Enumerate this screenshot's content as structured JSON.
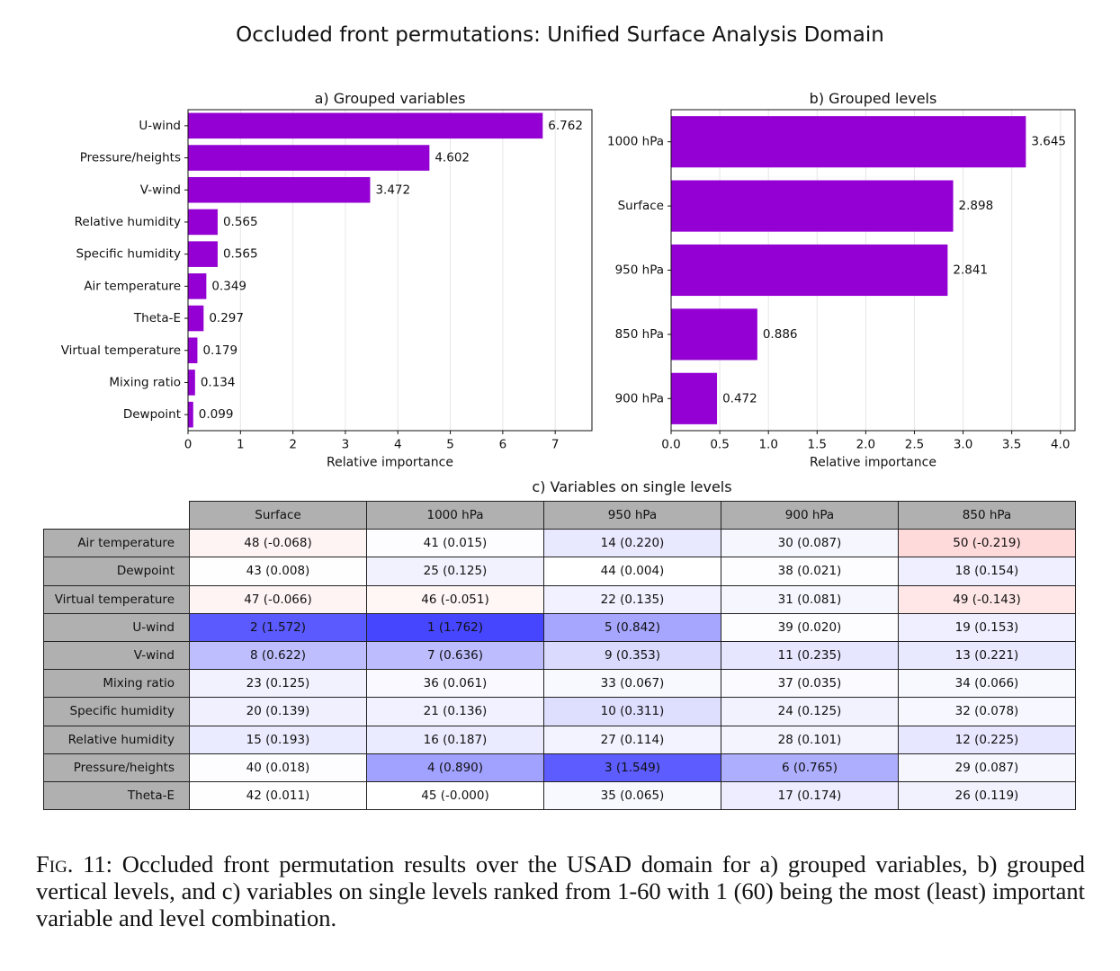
{
  "title": "Occluded front permutations: Unified Surface Analysis Domain",
  "colors": {
    "bar": "#9400d3",
    "grid": "#e6e6e6",
    "header_bg": "#b0b0b0"
  },
  "chart_data": [
    {
      "type": "bar",
      "orientation": "horizontal",
      "title": "a) Grouped variables",
      "xlabel": "Relative importance",
      "categories": [
        "U-wind",
        "Pressure/heights",
        "V-wind",
        "Relative humidity",
        "Specific humidity",
        "Air temperature",
        "Theta-E",
        "Virtual temperature",
        "Mixing ratio",
        "Dewpoint"
      ],
      "values": [
        6.762,
        4.602,
        3.472,
        0.565,
        0.565,
        0.349,
        0.297,
        0.179,
        0.134,
        0.099
      ],
      "data_labels": [
        "6.762",
        "4.602",
        "3.472",
        "0.565",
        "0.565",
        "0.349",
        "0.297",
        "0.179",
        "0.134",
        "0.099"
      ],
      "xlim": [
        0,
        7.7
      ],
      "xticks": [
        0,
        1,
        2,
        3,
        4,
        5,
        6,
        7
      ],
      "xtick_labels": [
        "0",
        "1",
        "2",
        "3",
        "4",
        "5",
        "6",
        "7"
      ],
      "grid": "vertical"
    },
    {
      "type": "bar",
      "orientation": "horizontal",
      "title": "b) Grouped levels",
      "xlabel": "Relative importance",
      "categories": [
        "1000 hPa",
        "Surface",
        "950 hPa",
        "850 hPa",
        "900 hPa"
      ],
      "values": [
        3.645,
        2.898,
        2.841,
        0.886,
        0.472
      ],
      "data_labels": [
        "3.645",
        "2.898",
        "2.841",
        "0.886",
        "0.472"
      ],
      "xlim": [
        0,
        4.15
      ],
      "xticks": [
        0,
        0.5,
        1,
        1.5,
        2,
        2.5,
        3,
        3.5,
        4
      ],
      "xtick_labels": [
        "0.0",
        "0.5",
        "1.0",
        "1.5",
        "2.0",
        "2.5",
        "3.0",
        "3.5",
        "4.0"
      ],
      "grid": "vertical"
    },
    {
      "type": "table",
      "title": "c) Variables on single levels",
      "columns": [
        "Surface",
        "1000 hPa",
        "950 hPa",
        "900 hPa",
        "850 hPa"
      ],
      "rows": [
        {
          "label": "Air temperature",
          "rank": [
            48,
            41,
            14,
            30,
            50
          ],
          "value": [
            -0.068,
            0.015,
            0.22,
            0.087,
            -0.219
          ],
          "cells": [
            "48 (-0.068)",
            "41 (0.015)",
            "14 (0.220)",
            "30 (0.087)",
            "50 (-0.219)"
          ]
        },
        {
          "label": "Dewpoint",
          "rank": [
            43,
            25,
            44,
            38,
            18
          ],
          "value": [
            0.008,
            0.125,
            0.004,
            0.021,
            0.154
          ],
          "cells": [
            "43 (0.008)",
            "25 (0.125)",
            "44 (0.004)",
            "38 (0.021)",
            "18 (0.154)"
          ]
        },
        {
          "label": "Virtual temperature",
          "rank": [
            47,
            46,
            22,
            31,
            49
          ],
          "value": [
            -0.066,
            -0.051,
            0.135,
            0.081,
            -0.143
          ],
          "cells": [
            "47 (-0.066)",
            "46 (-0.051)",
            "22 (0.135)",
            "31 (0.081)",
            "49 (-0.143)"
          ]
        },
        {
          "label": "U-wind",
          "rank": [
            2,
            1,
            5,
            39,
            19
          ],
          "value": [
            1.572,
            1.762,
            0.842,
            0.02,
            0.153
          ],
          "cells": [
            "2 (1.572)",
            "1 (1.762)",
            "5 (0.842)",
            "39 (0.020)",
            "19 (0.153)"
          ]
        },
        {
          "label": "V-wind",
          "rank": [
            8,
            7,
            9,
            11,
            13
          ],
          "value": [
            0.622,
            0.636,
            0.353,
            0.235,
            0.221
          ],
          "cells": [
            "8 (0.622)",
            "7 (0.636)",
            "9 (0.353)",
            "11 (0.235)",
            "13 (0.221)"
          ]
        },
        {
          "label": "Mixing ratio",
          "rank": [
            23,
            36,
            33,
            37,
            34
          ],
          "value": [
            0.125,
            0.061,
            0.067,
            0.035,
            0.066
          ],
          "cells": [
            "23 (0.125)",
            "36 (0.061)",
            "33 (0.067)",
            "37 (0.035)",
            "34 (0.066)"
          ]
        },
        {
          "label": "Specific humidity",
          "rank": [
            20,
            21,
            10,
            24,
            32
          ],
          "value": [
            0.139,
            0.136,
            0.311,
            0.125,
            0.078
          ],
          "cells": [
            "20 (0.139)",
            "21 (0.136)",
            "10 (0.311)",
            "24 (0.125)",
            "32 (0.078)"
          ]
        },
        {
          "label": "Relative humidity",
          "rank": [
            15,
            16,
            27,
            28,
            12
          ],
          "value": [
            0.193,
            0.187,
            0.114,
            0.101,
            0.225
          ],
          "cells": [
            "15 (0.193)",
            "16 (0.187)",
            "27 (0.114)",
            "28 (0.101)",
            "12 (0.225)"
          ]
        },
        {
          "label": "Pressure/heights",
          "rank": [
            40,
            4,
            3,
            6,
            29
          ],
          "value": [
            0.018,
            0.89,
            1.549,
            0.765,
            0.087
          ],
          "cells": [
            "40 (0.018)",
            "4 (0.890)",
            "3 (1.549)",
            "6 (0.765)",
            "29 (0.087)"
          ]
        },
        {
          "label": "Theta-E",
          "rank": [
            42,
            45,
            35,
            17,
            26
          ],
          "value": [
            0.011,
            -0.0,
            0.065,
            0.174,
            0.119
          ],
          "cells": [
            "42 (0.011)",
            "45 (-0.000)",
            "35 (0.065)",
            "17 (0.174)",
            "26 (0.119)"
          ]
        }
      ]
    }
  ],
  "caption": {
    "lead": "Fig. 11:",
    "text": "Occluded front permutation results over the USAD domain for a) grouped variables, b) grouped vertical levels, and c) variables on single levels ranked from 1-60 with 1 (60) being the most (least) important variable and level combination."
  }
}
